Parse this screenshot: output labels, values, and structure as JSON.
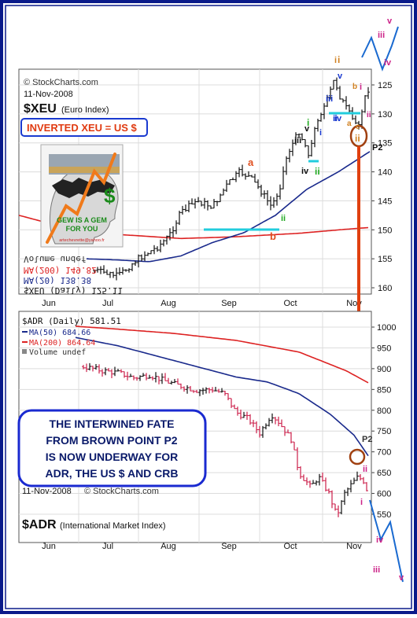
{
  "source_label": "© StockCharts.com",
  "chart_data": [
    {
      "type": "ohlc",
      "symbol": "$XEU",
      "symbol_desc": "(Euro Index)",
      "date": "11-Nov-2008",
      "inverted_label": "INVERTED XEU = US $",
      "logo_lines": [
        "GEW IS A GEM",
        "FOR YOU"
      ],
      "logo_email": "artechevrette@yahoo.fr",
      "legend_mirrored": [
        "Volume undef",
        "MA(200) 149.82",
        "MA(20) 138.38",
        "$XEU (Daily) 125.11"
      ],
      "x_ticks": [
        "Jun",
        "Jul",
        "Aug",
        "Sep",
        "Oct",
        "Nov"
      ],
      "y_ticks": [
        125,
        130,
        135,
        140,
        145,
        150,
        155,
        160
      ],
      "ylim": [
        160,
        122.5
      ],
      "y_inverted": true,
      "ma_colors": {
        "ma200": "#dd2222",
        "ma20": "#1a2a8c"
      },
      "wave_labels": [
        {
          "t": "a",
          "color": "#e05020"
        },
        {
          "t": "b",
          "color": "#e05020"
        },
        {
          "t": "i",
          "color": "#d08020"
        },
        {
          "t": "ii",
          "color": "#22aa22"
        },
        {
          "t": "iii",
          "color": "#111111"
        },
        {
          "t": "iv",
          "color": "#111111"
        },
        {
          "t": "v",
          "color": "#111111"
        },
        {
          "t": "ii",
          "color": "#22aa22"
        },
        {
          "t": "i",
          "color": "#22aa22"
        },
        {
          "t": "i",
          "color": "#1a3ad0"
        },
        {
          "t": "ii",
          "color": "#1a3ad0"
        },
        {
          "t": "iii",
          "color": "#1a3ad0"
        },
        {
          "t": "iv",
          "color": "#1a3ad0"
        },
        {
          "t": "v",
          "color": "#1a3ad0"
        },
        {
          "t": "i",
          "color": "#d08020"
        },
        {
          "t": "a",
          "color": "#d08020"
        },
        {
          "t": "b",
          "color": "#d08020"
        },
        {
          "t": "c",
          "color": "#d08020"
        },
        {
          "t": "ii",
          "color": "#d08020"
        },
        {
          "t": "i",
          "color": "#cc2288"
        },
        {
          "t": "ii",
          "color": "#cc2288"
        },
        {
          "t": "iii",
          "color": "#cc2288"
        },
        {
          "t": "iv",
          "color": "#cc2288"
        },
        {
          "t": "v",
          "color": "#cc2288"
        },
        {
          "t": "P2",
          "color": "#111111"
        }
      ]
    },
    {
      "type": "ohlc",
      "symbol": "$ADR",
      "symbol_desc": "(International Market Index)",
      "date": "11-Nov-2008",
      "legend": {
        "title": "$ADR (Daily) 581.51",
        "ma50": "MA(50) 684.66",
        "ma200": "MA(200) 864.64",
        "volume": "Volume undef"
      },
      "x_ticks": [
        "Jun",
        "Jul",
        "Aug",
        "Sep",
        "Oct",
        "Nov"
      ],
      "y_ticks": [
        1000,
        950,
        900,
        850,
        800,
        750,
        700,
        650,
        600,
        550
      ],
      "ylim": [
        500,
        1025
      ],
      "ma_colors": {
        "ma200": "#dd2222",
        "ma50": "#1a2a8c"
      },
      "callout_lines": [
        "THE INTERWINED FATE",
        "FROM BROWN POINT P2",
        "IS NOW UNDERWAY FOR",
        "ADR, THE US $ AND CRB"
      ],
      "wave_labels": [
        {
          "t": "P2",
          "color": "#333333"
        },
        {
          "t": "ii",
          "color": "#cc2288"
        },
        {
          "t": "i",
          "color": "#cc2288"
        },
        {
          "t": "iii",
          "color": "#cc2288"
        },
        {
          "t": "iv",
          "color": "#cc2288"
        },
        {
          "t": "v",
          "color": "#cc2288"
        }
      ]
    }
  ]
}
